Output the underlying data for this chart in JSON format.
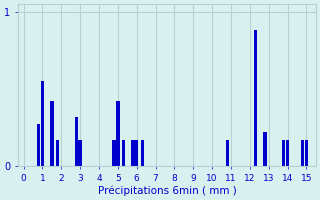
{
  "bar_positions": [
    0.8,
    1.0,
    1.5,
    1.8,
    2.8,
    3.0,
    4.8,
    5.0,
    5.3,
    5.8,
    6.0,
    6.3,
    10.8,
    12.3,
    12.8,
    13.8,
    14.0,
    14.8,
    15.0
  ],
  "bar_heights": [
    0.27,
    0.55,
    0.42,
    0.17,
    0.32,
    0.17,
    0.17,
    0.42,
    0.17,
    0.17,
    0.17,
    0.17,
    0.17,
    0.88,
    0.22,
    0.17,
    0.17,
    0.17,
    0.17
  ],
  "bar_color": "#0000cc",
  "bg_color": "#d8f0f0",
  "grid_color": "#b8d0d0",
  "xlabel": "Précipitations 6min ( mm )",
  "xticks": [
    0,
    1,
    2,
    3,
    4,
    5,
    6,
    7,
    8,
    9,
    10,
    11,
    12,
    13,
    14,
    15
  ],
  "xlim": [
    -0.3,
    15.5
  ],
  "ylim": [
    0,
    1.05
  ],
  "yticks": [
    0,
    1
  ],
  "bar_width": 0.18
}
